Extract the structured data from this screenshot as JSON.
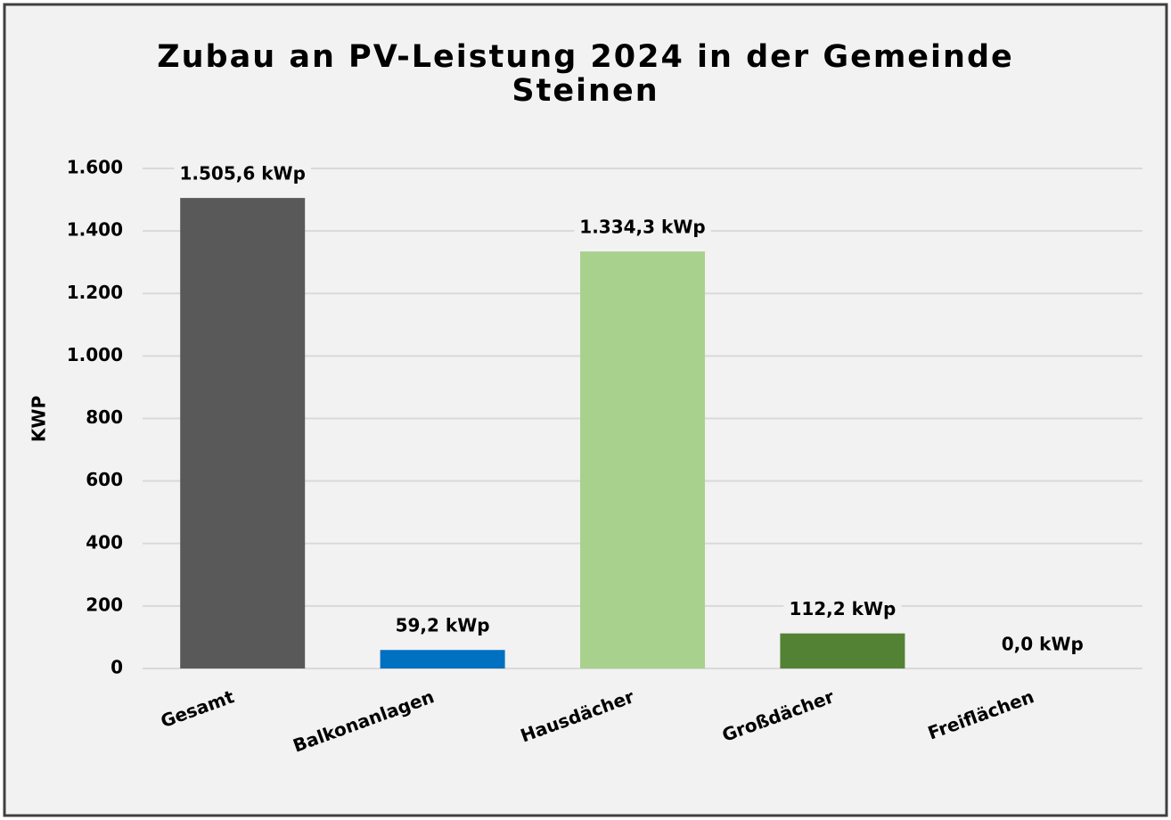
{
  "chart_data": {
    "type": "bar",
    "title": "Zubau an PV-Leistung 2024 in der Gemeinde Steinen",
    "ylabel": "KWP",
    "categories": [
      "Gesamt",
      "Balkonanlagen",
      "Hausdächer",
      "Großdächer",
      "Freiflächen"
    ],
    "values": [
      1505.6,
      59.2,
      1334.3,
      112.2,
      0.0
    ],
    "value_labels": [
      "1.505,6 kWp",
      "59,2 kWp",
      "1.334,3 kWp",
      "112,2 kWp",
      "0,0 kWp"
    ],
    "colors": [
      "#595959",
      "#0070c0",
      "#a9d18e",
      "#548235",
      "#7f7f7f"
    ],
    "ylim": [
      0,
      1600
    ],
    "yticks": [
      0,
      200,
      400,
      600,
      800,
      {
        "value": 1000,
        "label": "1.000"
      },
      {
        "value": 1200,
        "label": "1.200"
      },
      {
        "value": 1400,
        "label": "1.400"
      },
      {
        "value": 1600,
        "label": "1.600"
      }
    ],
    "grid": true
  }
}
